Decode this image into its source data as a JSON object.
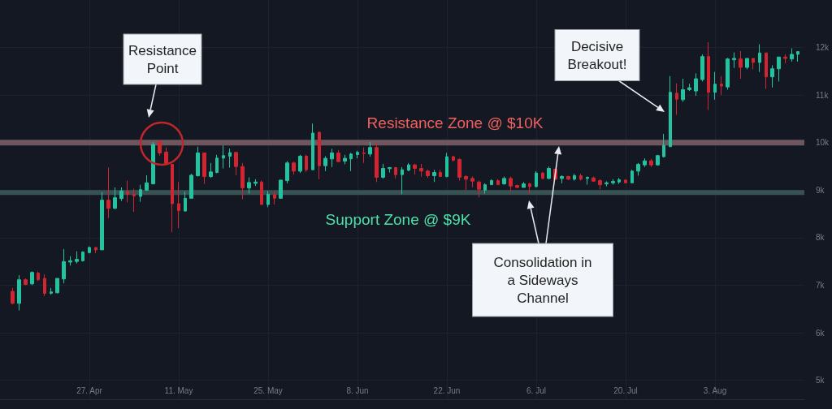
{
  "chart_data": {
    "type": "candlestick",
    "x": [
      "--04-15",
      "--04-16",
      "--04-17",
      "--04-18",
      "--04-19",
      "--04-20",
      "--04-21",
      "--04-22",
      "--04-23",
      "--04-24",
      "--04-25",
      "--04-26",
      "--04-27",
      "--04-28",
      "--04-29",
      "--04-30",
      "--05-01",
      "--05-02",
      "--05-03",
      "--05-04",
      "--05-05",
      "--05-06",
      "--05-07",
      "--05-08",
      "--05-09",
      "--05-10",
      "--05-11",
      "--05-12",
      "--05-13",
      "--05-14",
      "--05-15",
      "--05-16",
      "--05-17",
      "--05-18",
      "--05-19",
      "--05-20",
      "--05-21",
      "--05-22",
      "--05-23",
      "--05-24",
      "--05-25",
      "--05-26",
      "--05-27",
      "--05-28",
      "--05-29",
      "--05-30",
      "--05-31",
      "--06-01",
      "--06-02",
      "--06-03",
      "--06-04",
      "--06-05",
      "--06-06",
      "--06-07",
      "--06-08",
      "--06-09",
      "--06-10",
      "--06-11",
      "--06-12",
      "--06-13",
      "--06-14",
      "--06-15",
      "--06-16",
      "--06-17",
      "--06-18",
      "--06-19",
      "--06-20",
      "--06-21",
      "--06-22",
      "--06-23",
      "--06-24",
      "--06-25",
      "--06-26",
      "--06-27",
      "--06-28",
      "--06-29",
      "--06-30",
      "--07-01",
      "--07-02",
      "--07-03",
      "--07-04",
      "--07-05",
      "--07-06",
      "--07-07",
      "--07-08",
      "--07-09",
      "--07-10",
      "--07-11",
      "--07-12",
      "--07-13",
      "--07-14",
      "--07-15",
      "--07-16",
      "--07-17",
      "--07-18",
      "--07-19",
      "--07-20",
      "--07-21",
      "--07-22",
      "--07-23",
      "--07-24",
      "--07-25",
      "--07-26",
      "--07-27",
      "--07-28",
      "--07-29",
      "--07-30",
      "--07-31",
      "--08-01",
      "--08-02",
      "--08-03",
      "--08-04",
      "--08-05",
      "--08-06",
      "--08-07",
      "--08-08",
      "--08-09",
      "--08-10",
      "--08-11",
      "--08-12",
      "--08-13",
      "--08-14",
      "--08-15",
      "--08-16"
    ],
    "ohlc": [
      [
        6869,
        6943,
        6600,
        6617
      ],
      [
        6617,
        7211,
        6469,
        7114
      ],
      [
        7114,
        7143,
        7000,
        7017
      ],
      [
        7029,
        7290,
        7000,
        7269
      ],
      [
        7257,
        7286,
        7086,
        7114
      ],
      [
        7143,
        7229,
        6771,
        6829
      ],
      [
        6830,
        6943,
        6800,
        6860
      ],
      [
        6840,
        7143,
        6829,
        7143
      ],
      [
        7131,
        7760,
        7040,
        7497
      ],
      [
        7486,
        7611,
        7411,
        7514
      ],
      [
        7500,
        7714,
        7457,
        7543
      ],
      [
        7514,
        7714,
        7497,
        7697
      ],
      [
        7686,
        7817,
        7669,
        7794
      ],
      [
        7794,
        7794,
        7669,
        7743
      ],
      [
        7743,
        8960,
        7743,
        8789
      ],
      [
        8789,
        9474,
        8411,
        8617
      ],
      [
        8617,
        9057,
        8600,
        8840
      ],
      [
        8823,
        9057,
        8771,
        8983
      ],
      [
        8971,
        9200,
        8743,
        8914
      ],
      [
        8914,
        9029,
        8543,
        8880
      ],
      [
        8869,
        9114,
        8754,
        9011
      ],
      [
        9000,
        9314,
        8983,
        9154
      ],
      [
        9131,
        10011,
        9131,
        9960
      ],
      [
        10017,
        10046,
        9726,
        9783
      ],
      [
        9800,
        9897,
        9543,
        9543
      ],
      [
        9543,
        9543,
        8114,
        8714
      ],
      [
        8714,
        9171,
        8200,
        8571
      ],
      [
        8560,
        8971,
        8554,
        8829
      ],
      [
        8829,
        9343,
        8829,
        9314
      ],
      [
        9303,
        9914,
        9286,
        9783
      ],
      [
        9783,
        9783,
        9131,
        9286
      ],
      [
        9286,
        9571,
        9257,
        9383
      ],
      [
        9371,
        9743,
        9354,
        9674
      ],
      [
        9674,
        9943,
        9457,
        9726
      ],
      [
        9714,
        9874,
        9474,
        9789
      ],
      [
        9794,
        9800,
        9314,
        9497
      ],
      [
        9497,
        9571,
        8811,
        9046
      ],
      [
        9046,
        9269,
        8926,
        9160
      ],
      [
        9143,
        9229,
        9086,
        9171
      ],
      [
        9171,
        9200,
        8697,
        8697
      ],
      [
        8697,
        8983,
        8640,
        8914
      ],
      [
        8903,
        8971,
        8697,
        8829
      ],
      [
        8829,
        9211,
        8829,
        9211
      ],
      [
        9200,
        9611,
        9143,
        9571
      ],
      [
        9571,
        9600,
        9326,
        9400
      ],
      [
        9400,
        9743,
        9360,
        9714
      ],
      [
        9714,
        9743,
        9383,
        9429
      ],
      [
        9429,
        10400,
        9429,
        10200
      ],
      [
        10217,
        10229,
        9229,
        9514
      ],
      [
        9514,
        9714,
        9400,
        9669
      ],
      [
        9657,
        9869,
        9486,
        9783
      ],
      [
        9783,
        9840,
        9589,
        9600
      ],
      [
        9611,
        9743,
        9543,
        9669
      ],
      [
        9657,
        9783,
        9400,
        9760
      ],
      [
        9749,
        9829,
        9669,
        9794
      ],
      [
        9783,
        9897,
        9571,
        9771
      ],
      [
        9760,
        10011,
        9703,
        9897
      ],
      [
        9897,
        10000,
        9171,
        9269
      ],
      [
        9269,
        9554,
        9246,
        9457
      ],
      [
        9451,
        9486,
        9371,
        9474
      ],
      [
        9474,
        9486,
        9246,
        9326
      ],
      [
        9326,
        9486,
        8914,
        9429
      ],
      [
        9417,
        9571,
        9400,
        9531
      ],
      [
        9531,
        9554,
        9326,
        9457
      ],
      [
        9457,
        9554,
        9286,
        9400
      ],
      [
        9400,
        9429,
        9257,
        9303
      ],
      [
        9303,
        9429,
        9171,
        9371
      ],
      [
        9371,
        9429,
        9286,
        9286
      ],
      [
        9286,
        9783,
        9269,
        9703
      ],
      [
        9703,
        9726,
        9600,
        9629
      ],
      [
        9646,
        9669,
        9200,
        9269
      ],
      [
        9286,
        9314,
        9000,
        9229
      ],
      [
        9246,
        9286,
        9057,
        9189
      ],
      [
        9171,
        9200,
        8846,
        9017
      ],
      [
        9000,
        9143,
        8926,
        9114
      ],
      [
        9114,
        9229,
        9114,
        9200
      ],
      [
        9200,
        9229,
        9114,
        9114
      ],
      [
        9131,
        9286,
        9114,
        9246
      ],
      [
        9246,
        9286,
        8960,
        9086
      ],
      [
        9097,
        9114,
        9040,
        9057
      ],
      [
        9057,
        9171,
        9057,
        9131
      ],
      [
        9131,
        9154,
        8914,
        9074
      ],
      [
        9074,
        9400,
        9057,
        9360
      ],
      [
        9360,
        9383,
        9229,
        9246
      ],
      [
        9246,
        9497,
        9229,
        9457
      ],
      [
        9440,
        9457,
        9211,
        9229
      ],
      [
        9246,
        9314,
        9143,
        9286
      ],
      [
        9286,
        9303,
        9211,
        9229
      ],
      [
        9229,
        9343,
        9200,
        9303
      ],
      [
        9303,
        9343,
        9200,
        9229
      ],
      [
        9246,
        9286,
        9114,
        9269
      ],
      [
        9257,
        9286,
        9171,
        9189
      ],
      [
        9200,
        9229,
        9017,
        9114
      ],
      [
        9131,
        9186,
        9080,
        9154
      ],
      [
        9154,
        9229,
        9114,
        9183
      ],
      [
        9171,
        9257,
        9131,
        9217
      ],
      [
        9211,
        9229,
        9143,
        9154
      ],
      [
        9154,
        9429,
        9143,
        9400
      ],
      [
        9400,
        9571,
        9303,
        9543
      ],
      [
        9531,
        9669,
        9486,
        9617
      ],
      [
        9617,
        9657,
        9486,
        9531
      ],
      [
        9531,
        9743,
        9514,
        9726
      ],
      [
        9703,
        10183,
        9686,
        9943
      ],
      [
        9914,
        11400,
        9914,
        11057
      ],
      [
        11040,
        11246,
        10583,
        10914
      ],
      [
        10903,
        11343,
        10857,
        11114
      ],
      [
        11114,
        11240,
        11086,
        11154
      ],
      [
        11086,
        11457,
        10983,
        11343
      ],
      [
        11326,
        11857,
        11286,
        11811
      ],
      [
        11811,
        12114,
        10686,
        11057
      ],
      [
        11057,
        11486,
        10903,
        11229
      ],
      [
        11229,
        11400,
        11000,
        11189
      ],
      [
        11171,
        11783,
        11114,
        11760
      ],
      [
        11743,
        11897,
        11571,
        11771
      ],
      [
        11760,
        11926,
        11343,
        11583
      ],
      [
        11583,
        11771,
        11543,
        11771
      ],
      [
        11771,
        11771,
        11543,
        11686
      ],
      [
        11686,
        12069,
        11486,
        11886
      ],
      [
        11886,
        11886,
        11131,
        11383
      ],
      [
        11383,
        11629,
        11160,
        11554
      ],
      [
        11554,
        11800,
        11286,
        11800
      ],
      [
        11800,
        11857,
        11669,
        11771
      ],
      [
        11760,
        11983,
        11703,
        11857
      ],
      [
        11857,
        11914,
        11703,
        11914
      ]
    ],
    "xlim": [
      "--04-13",
      "--08-17"
    ],
    "xticks": [
      {
        "value": "--04-27",
        "label": "27. Apr"
      },
      {
        "value": "--05-11",
        "label": "11. May"
      },
      {
        "value": "--05-25",
        "label": "25. May"
      },
      {
        "value": "--06-08",
        "label": "8. Jun"
      },
      {
        "value": "--06-22",
        "label": "22. Jun"
      },
      {
        "value": "--07-06",
        "label": "6. Jul"
      },
      {
        "value": "--07-20",
        "label": "20. Jul"
      },
      {
        "value": "--08-03",
        "label": "3. Aug"
      }
    ],
    "ylim": [
      4600,
      13000
    ],
    "yticks": [
      {
        "value": 5000,
        "label": "5k"
      },
      {
        "value": 6000,
        "label": "6k"
      },
      {
        "value": 7000,
        "label": "7k"
      },
      {
        "value": 8000,
        "label": "8k"
      },
      {
        "value": 9000,
        "label": "9k"
      },
      {
        "value": 10000,
        "label": "10k"
      },
      {
        "value": 11000,
        "label": "11k"
      },
      {
        "value": 12000,
        "label": "12k"
      }
    ],
    "grid": true,
    "bands": [
      {
        "axis": "y",
        "from": 9940,
        "to": 10060,
        "label": "Resistance Zone @ $10K",
        "color": "#7d6268"
      },
      {
        "axis": "y",
        "from": 8900,
        "to": 9000,
        "label": "Support Zone @ $9K",
        "color": "#3e5c5c"
      }
    ],
    "annotations": [
      "Resistance Point",
      "Decisive Breakout!",
      "Consolidation in a Sideways Channel"
    ]
  }
}
